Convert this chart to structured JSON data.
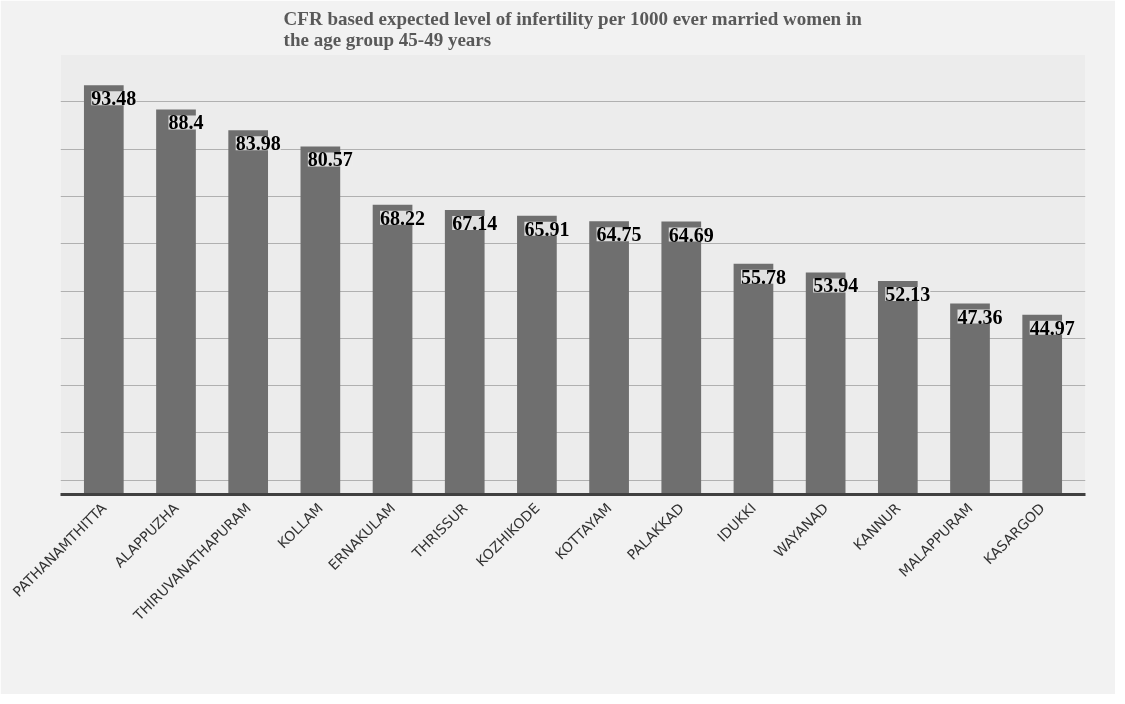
{
  "chart_data": {
    "type": "bar",
    "title": "CFR based expected level of infertility per 1000 ever married women in the age group 45-49 years",
    "categories": [
      "PATHANAMTHITTA",
      "ALAPPUZHA",
      "THIRUVANATHAPURAM",
      "KOLLAM",
      "ERNAKULAM",
      "THRISSUR",
      "KOZHIKODE",
      "KOTTAYAM",
      "PALAKKAD",
      "IDUKKI",
      "WAYANAD",
      "KANNUR",
      "MALAPPURAM",
      "KASARGOD"
    ],
    "values": [
      93.48,
      88.4,
      83.98,
      80.57,
      68.22,
      67.14,
      65.91,
      64.75,
      64.69,
      55.78,
      53.94,
      52.13,
      47.36,
      44.97
    ],
    "color": "#6f6f6f",
    "data_labels": true,
    "ylim": [
      7,
      100
    ],
    "yticks": [
      {
        "value": 10,
        "label": null
      },
      {
        "value": 20,
        "label": null
      },
      {
        "value": 30,
        "label": null
      },
      {
        "value": 40,
        "label": null
      },
      {
        "value": 50,
        "label": null
      },
      {
        "value": 60,
        "label": null
      },
      {
        "value": 70,
        "label": null
      },
      {
        "value": 80,
        "label": null
      },
      {
        "value": 90,
        "label": null
      },
      {
        "value": 100,
        "label": null
      }
    ],
    "grid": "y",
    "tick_labels": "x"
  }
}
